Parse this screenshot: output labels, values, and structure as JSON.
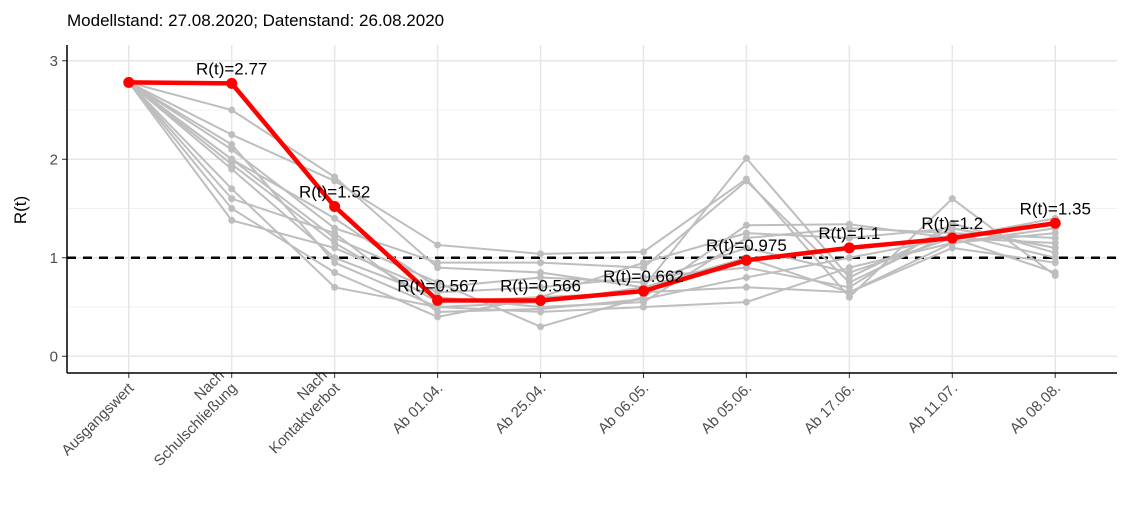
{
  "chart_data": {
    "type": "line",
    "subtitle": "Modellstand: 27.08.2020; Datenstand: 26.08.2020",
    "y_label": "R(t)",
    "categories": [
      "Ausgangswert",
      "Nach\nSchulschließung",
      "Nach\nKontaktverbot",
      "Ab 01.04.",
      "Ab 25.04.",
      "Ab 06.05.",
      "Ab 05.06.",
      "Ab 17.06.",
      "Ab 11.07.",
      "Ab 08.08."
    ],
    "series": [
      {
        "color": "#bebebe",
        "values": [
          2.78,
          2.5,
          1.82,
          0.9,
          0.85,
          0.7,
          2.01,
          0.8,
          1.3,
          1.1
        ]
      },
      {
        "color": "#bebebe",
        "values": [
          2.78,
          2.25,
          1.78,
          1.13,
          1.04,
          1.06,
          1.8,
          0.6,
          1.6,
          0.82
        ]
      },
      {
        "color": "#bebebe",
        "values": [
          2.78,
          2.1,
          1.3,
          0.95,
          0.95,
          0.9,
          1.78,
          0.75,
          1.25,
          1.0
        ]
      },
      {
        "color": "#bebebe",
        "values": [
          2.78,
          2.0,
          1.2,
          0.75,
          0.3,
          0.6,
          1.33,
          1.34,
          1.2,
          1.15
        ]
      },
      {
        "color": "#bebebe",
        "values": [
          2.78,
          1.9,
          1.0,
          0.6,
          0.5,
          0.55,
          1.2,
          1.3,
          1.25,
          1.2
        ]
      },
      {
        "color": "#bebebe",
        "values": [
          2.78,
          1.7,
          0.7,
          0.5,
          0.45,
          0.5,
          0.55,
          0.9,
          1.15,
          1.3
        ]
      },
      {
        "color": "#bebebe",
        "values": [
          2.78,
          1.5,
          0.85,
          0.4,
          0.6,
          0.65,
          0.7,
          0.65,
          1.1,
          0.95
        ]
      },
      {
        "color": "#bebebe",
        "values": [
          2.78,
          1.38,
          1.1,
          0.65,
          0.7,
          0.8,
          0.9,
          0.7,
          1.35,
          1.05
        ]
      },
      {
        "color": "#bebebe",
        "values": [
          2.78,
          2.0,
          1.4,
          0.7,
          0.8,
          0.75,
          1.1,
          0.85,
          1.2,
          1.4
        ]
      },
      {
        "color": "#bebebe",
        "values": [
          2.78,
          1.95,
          1.15,
          0.55,
          0.6,
          0.95,
          1.25,
          1.2,
          1.3,
          1.1
        ]
      },
      {
        "color": "#bebebe",
        "values": [
          2.78,
          2.15,
          0.95,
          0.5,
          0.55,
          0.7,
          1.0,
          0.65,
          1.15,
          1.25
        ]
      },
      {
        "color": "#bebebe",
        "values": [
          2.78,
          1.6,
          1.25,
          0.45,
          0.48,
          0.58,
          0.8,
          1.0,
          1.2,
          0.85
        ]
      },
      {
        "color": "#ff0000",
        "values": [
          2.78,
          2.77,
          1.52,
          0.567,
          0.566,
          0.662,
          0.975,
          1.1,
          1.2,
          1.35
        ],
        "value_labels": [
          null,
          "R(t)=2.77",
          "R(t)=1.52",
          "R(t)=0.567",
          "R(t)=0.566",
          "R(t)=0.662",
          "R(t)=0.975",
          "R(t)=1.1",
          "R(t)=1.2",
          "R(t)=1.35"
        ]
      }
    ],
    "hline": 1,
    "ylim": [
      -0.17,
      3.16
    ],
    "yticks": [
      0,
      1,
      2,
      3
    ],
    "yminor": [
      0.5,
      1.5,
      2.5
    ],
    "grid": true
  }
}
